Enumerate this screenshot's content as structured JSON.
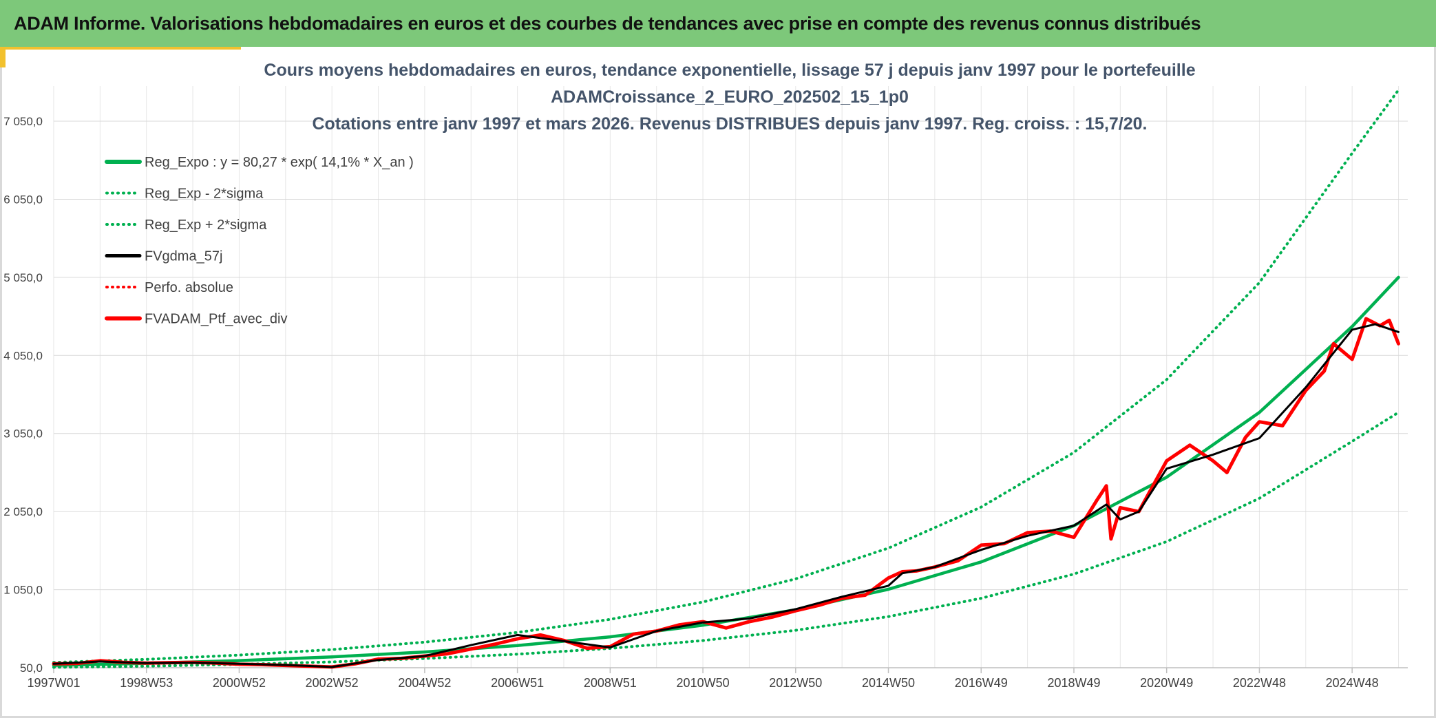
{
  "header": {
    "title": "ADAM Informe. Valorisations hebdomadaires en euros et des courbes de tendances avec prise en compte des revenus connus distribués"
  },
  "colors": {
    "header_bg": "#7dc87a",
    "accent": "#f2c12e",
    "green": "#00b050",
    "red": "#ff0000",
    "black": "#000000"
  },
  "chart_data": {
    "type": "line",
    "title_lines": [
      "Cours moyens hebdomadaires en euros, tendance exponentielle, lissage 57 j depuis janv 1997 pour le portefeuille",
      "ADAMCroissance_2_EURO_202502_15_1p0",
      "Cotations entre janv 1997 et mars 2026. Revenus DISTRIBUES depuis janv 1997. Reg. croiss. : 15,7/20."
    ],
    "xlabel": "",
    "ylabel": "",
    "x_tick_labels": [
      "1997W01",
      "1998W53",
      "2000W52",
      "2002W52",
      "2004W52",
      "2006W51",
      "2008W51",
      "2010W50",
      "2012W50",
      "2014W50",
      "2016W49",
      "2018W49",
      "2020W49",
      "2022W48",
      "2024W48"
    ],
    "x_tick_years": [
      1997.0,
      1999.0,
      2001.0,
      2003.0,
      2005.0,
      2007.0,
      2009.0,
      2011.0,
      2013.0,
      2015.0,
      2017.0,
      2019.0,
      2021.0,
      2023.0,
      2025.0
    ],
    "xlim": [
      1997.0,
      2026.2
    ],
    "y_tick_labels": [
      "50,0",
      "1 050,0",
      "2 050,0",
      "3 050,0",
      "4 050,0",
      "5 050,0",
      "6 050,0",
      "7 050,0"
    ],
    "y_ticks": [
      50,
      1050,
      2050,
      3050,
      4050,
      5050,
      6050,
      7050
    ],
    "ylim": [
      50,
      7500
    ],
    "grid": true,
    "legend_position": "top-left",
    "series": [
      {
        "name": "Reg_Expo : y = 80,27 * exp( 14,1% *  X_an )",
        "color": "#00b050",
        "style": "solid",
        "width": 4.5,
        "x": [
          1997,
          1999,
          2001,
          2003,
          2005,
          2007,
          2009,
          2011,
          2013,
          2015,
          2017,
          2019,
          2021,
          2023,
          2025,
          2026
        ],
        "y": [
          80,
          106,
          142,
          189,
          252,
          335,
          446,
          595,
          792,
          1055,
          1405,
          1870,
          2490,
          3320,
          4420,
          5050
        ]
      },
      {
        "name": "Reg_Exp - 2*sigma",
        "color": "#00b050",
        "style": "dotted",
        "width": 4,
        "x": [
          1997,
          1999,
          2001,
          2003,
          2005,
          2007,
          2009,
          2011,
          2013,
          2015,
          2017,
          2019,
          2021,
          2023,
          2025,
          2026
        ],
        "y": [
          55,
          70,
          93,
          125,
          168,
          224,
          298,
          398,
          530,
          705,
          940,
          1250,
          1665,
          2220,
          2950,
          3320
        ]
      },
      {
        "name": "Reg_Exp + 2*sigma",
        "color": "#00b050",
        "style": "dotted",
        "width": 4,
        "x": [
          1997,
          1999,
          2001,
          2003,
          2005,
          2007,
          2009,
          2011,
          2013,
          2015,
          2017,
          2019,
          2021,
          2023,
          2025,
          2026
        ],
        "y": [
          118,
          158,
          212,
          283,
          378,
          502,
          670,
          892,
          1188,
          1582,
          2108,
          2808,
          3740,
          4982,
          6640,
          7450
        ]
      },
      {
        "name": "FVgdma_57j",
        "color": "#000000",
        "style": "solid",
        "width": 3,
        "x": [
          1997,
          1998,
          1999,
          2000,
          2001,
          2002,
          2003,
          2004,
          2005,
          2006,
          2007,
          2008,
          2009,
          2010,
          2011,
          2012,
          2013,
          2014,
          2015,
          2015.3,
          2016,
          2017,
          2018,
          2019,
          2019.7,
          2020,
          2020.4,
          2021,
          2022,
          2023,
          2024,
          2025,
          2025.5,
          2026
        ],
        "y": [
          100,
          130,
          110,
          115,
          100,
          85,
          60,
          150,
          200,
          340,
          470,
          390,
          310,
          520,
          630,
          680,
          800,
          960,
          1100,
          1260,
          1340,
          1560,
          1740,
          1870,
          2140,
          1950,
          2050,
          2600,
          2780,
          2990,
          3640,
          4380,
          4450,
          4350
        ]
      },
      {
        "name": "Perfo. absolue",
        "color": "#ff0000",
        "style": "dotted",
        "width": 4,
        "x": [],
        "y": []
      },
      {
        "name": "FVADAM_Ptf_avec_div",
        "color": "#ff0000",
        "style": "solid",
        "width": 5,
        "x": [
          1997,
          1997.5,
          1998,
          1998.5,
          1999,
          1999.5,
          2000,
          2000.5,
          2001,
          2001.5,
          2002,
          2002.5,
          2003,
          2003.5,
          2004,
          2004.5,
          2005,
          2005.5,
          2006,
          2006.5,
          2007,
          2007.5,
          2008,
          2008.5,
          2009,
          2009.5,
          2010,
          2010.5,
          2011,
          2011.5,
          2012,
          2012.5,
          2013,
          2013.5,
          2014,
          2014.5,
          2015,
          2015.3,
          2015.6,
          2016,
          2016.5,
          2017,
          2017.5,
          2018,
          2018.5,
          2019,
          2019.5,
          2019.7,
          2019.8,
          2020,
          2020.4,
          2021,
          2021.5,
          2022,
          2022.3,
          2022.7,
          2023,
          2023.5,
          2024,
          2024.4,
          2024.6,
          2025,
          2025.3,
          2025.6,
          2025.8,
          2026
        ],
        "y": [
          100,
          105,
          140,
          120,
          110,
          115,
          120,
          110,
          95,
          90,
          80,
          70,
          60,
          100,
          160,
          170,
          200,
          230,
          290,
          350,
          420,
          470,
          400,
          300,
          320,
          480,
          520,
          600,
          640,
          560,
          640,
          700,
          780,
          850,
          940,
          980,
          1200,
          1280,
          1290,
          1340,
          1420,
          1620,
          1640,
          1780,
          1800,
          1720,
          2200,
          2380,
          1700,
          2100,
          2050,
          2700,
          2900,
          2700,
          2550,
          3000,
          3200,
          3150,
          3600,
          3850,
          4200,
          4000,
          4520,
          4430,
          4500,
          4200
        ]
      }
    ]
  }
}
